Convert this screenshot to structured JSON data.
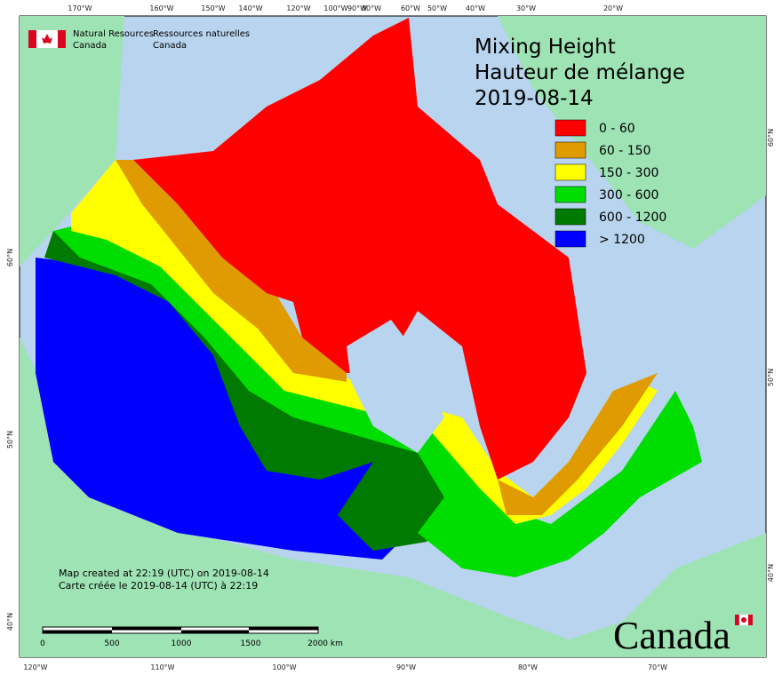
{
  "header": {
    "org_en": [
      "Natural Resources",
      "Canada"
    ],
    "org_fr": [
      "Ressources naturelles",
      "Canada"
    ]
  },
  "title": [
    "Mixing Height",
    "Hauteur de mélange",
    "2019-08-14"
  ],
  "legend": [
    {
      "label": "0 - 60",
      "color": "#ff0000"
    },
    {
      "label": "60 - 150",
      "color": "#e09b00"
    },
    {
      "label": "150 - 300",
      "color": "#ffff00"
    },
    {
      "label": "300 - 600",
      "color": "#00dd00"
    },
    {
      "label": "600 - 1200",
      "color": "#007a00"
    },
    {
      "label": "> 1200",
      "color": "#0000ff"
    }
  ],
  "graticule": {
    "top": [
      "170°W",
      "160°W",
      "150°W",
      "140°W",
      "120°W",
      "100°W",
      "90°W",
      "80°W",
      "60°W",
      "50°W",
      "40°W",
      "30°W",
      "20°W"
    ],
    "bottom": [
      "120°W",
      "110°W",
      "100°W",
      "90°W",
      "80°W",
      "70°W"
    ],
    "left": [
      "60°N",
      "50°N",
      "40°N"
    ],
    "right": [
      "60°N",
      "50°N",
      "40°N"
    ]
  },
  "notes": [
    "Map created at 22:19 (UTC) on 2019-08-14",
    "Carte créée le 2019-08-14 (UTC) à 22:19"
  ],
  "scale_bar": [
    "0",
    "500",
    "1000",
    "1500",
    "2000 km"
  ],
  "wordmark": "Canada"
}
